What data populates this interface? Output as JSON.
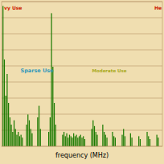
{
  "chart_data": {
    "type": "bar",
    "xlabel": "frequency (MHz)",
    "x": [
      1,
      2,
      3,
      4,
      5,
      6,
      7,
      8,
      9,
      10,
      11,
      12,
      13,
      14,
      15,
      18,
      19,
      20,
      21,
      22,
      26,
      27,
      28,
      34,
      35,
      36,
      37,
      38,
      39,
      44,
      45,
      46,
      47,
      48,
      49,
      50,
      51,
      52,
      53,
      54,
      55,
      56,
      57,
      58,
      59,
      60,
      65,
      66,
      67,
      68,
      69,
      73,
      74,
      75,
      76,
      80,
      81,
      82,
      87,
      88,
      89,
      93,
      94,
      99,
      100,
      105,
      106,
      107,
      112,
      113
    ],
    "values": [
      0.97,
      0.6,
      0.35,
      0.5,
      0.3,
      0.2,
      0.15,
      0.1,
      0.18,
      0.12,
      0.08,
      0.1,
      0.07,
      0.08,
      0.06,
      0.15,
      0.22,
      0.18,
      0.12,
      0.09,
      0.2,
      0.28,
      0.12,
      0.1,
      0.2,
      0.92,
      0.55,
      0.3,
      0.15,
      0.08,
      0.1,
      0.07,
      0.09,
      0.06,
      0.08,
      0.07,
      0.06,
      0.09,
      0.07,
      0.08,
      0.06,
      0.07,
      0.08,
      0.06,
      0.07,
      0.05,
      0.12,
      0.18,
      0.14,
      0.1,
      0.08,
      0.15,
      0.1,
      0.08,
      0.06,
      0.1,
      0.07,
      0.06,
      0.08,
      0.12,
      0.07,
      0.09,
      0.06,
      0.07,
      0.05,
      0.1,
      0.07,
      0.05,
      0.08,
      0.06
    ],
    "color": "#1a7a00",
    "xlim": [
      0,
      116
    ],
    "ylim": [
      0,
      1.0
    ],
    "yticks": [
      0,
      0.1111111111111111,
      0.2222222222222222,
      0.3333333333333333,
      0.4444444444444444,
      0.5555555555555556,
      0.6666666666666666,
      0.7777777777777778,
      0.8888888888888888,
      1.0
    ],
    "grid": true,
    "tick_labels": false,
    "annotations": [
      {
        "text": "vy Use",
        "color": "#cc2200"
      },
      {
        "text": "He",
        "color": "#cc2200"
      },
      {
        "text": "Sparse Use",
        "color": "#3399bb"
      },
      {
        "text": "Moderate Use",
        "color": "#aaaa22"
      }
    ]
  }
}
